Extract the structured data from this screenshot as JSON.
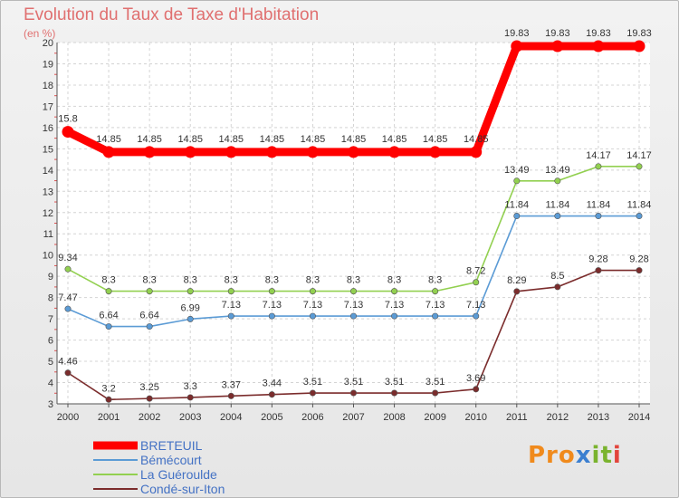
{
  "chart_data": {
    "type": "line",
    "title": "Evolution du Taux de Taxe d'Habitation",
    "subtitle": "(en %)",
    "ylim": [
      3,
      20
    ],
    "grid": true,
    "legend_position": "bottom-left",
    "x": [
      "2000",
      "2001",
      "2002",
      "2003",
      "2004",
      "2005",
      "2006",
      "2007",
      "2008",
      "2009",
      "2010",
      "2011",
      "2012",
      "2013",
      "2014"
    ],
    "yticks": [
      "3",
      "4",
      "5",
      "6",
      "7",
      "8",
      "9",
      "10",
      "11",
      "12",
      "13",
      "14",
      "15",
      "16",
      "17",
      "18",
      "19",
      "20"
    ],
    "series": [
      {
        "name": "BRETEUIL",
        "color": "#ff0000",
        "values": [
          15.8,
          14.85,
          14.85,
          14.85,
          14.85,
          14.85,
          14.85,
          14.85,
          14.85,
          14.85,
          14.85,
          19.83,
          19.83,
          19.83,
          19.83
        ],
        "labels": [
          "15.8",
          "14.85",
          "14.85",
          "14.85",
          "14.85",
          "14.85",
          "14.85",
          "14.85",
          "14.85",
          "14.85",
          "14.85",
          "19.83",
          "19.83",
          "19.83",
          "19.83"
        ]
      },
      {
        "name": "Bémécourt",
        "color": "#5b9bd5",
        "values": [
          7.47,
          6.64,
          6.64,
          6.99,
          7.13,
          7.13,
          7.13,
          7.13,
          7.13,
          7.13,
          7.13,
          11.84,
          11.84,
          11.84,
          11.84
        ],
        "labels": [
          "7.47",
          "6.64",
          "6.64",
          "6.99",
          "7.13",
          "7.13",
          "7.13",
          "7.13",
          "7.13",
          "7.13",
          "7.13",
          "11.84",
          "11.84",
          "11.84",
          "11.84"
        ]
      },
      {
        "name": "La Guéroulde",
        "color": "#92d050",
        "values": [
          9.34,
          8.3,
          8.3,
          8.3,
          8.3,
          8.3,
          8.3,
          8.3,
          8.3,
          8.3,
          8.72,
          13.49,
          13.49,
          14.17,
          14.17
        ],
        "labels": [
          "9.34",
          "8.3",
          "8.3",
          "8.3",
          "8.3",
          "8.3",
          "8.3",
          "8.3",
          "8.3",
          "8.3",
          "8.72",
          "13.49",
          "13.49",
          "14.17",
          "14.17"
        ]
      },
      {
        "name": "Condé-sur-Iton",
        "color": "#7b2c2c",
        "values": [
          4.46,
          3.2,
          3.25,
          3.3,
          3.37,
          3.44,
          3.51,
          3.51,
          3.51,
          3.51,
          3.69,
          8.29,
          8.5,
          9.28,
          9.28
        ],
        "labels": [
          "4.46",
          "3.2",
          "3.25",
          "3.3",
          "3.37",
          "3.44",
          "3.51",
          "3.51",
          "3.51",
          "3.51",
          "3.69",
          "8.29",
          "8.5",
          "9.28",
          "9.28"
        ]
      }
    ]
  },
  "logo": {
    "part1": "Pro",
    "part2": "x",
    "part3": "it",
    "part4": "i"
  }
}
